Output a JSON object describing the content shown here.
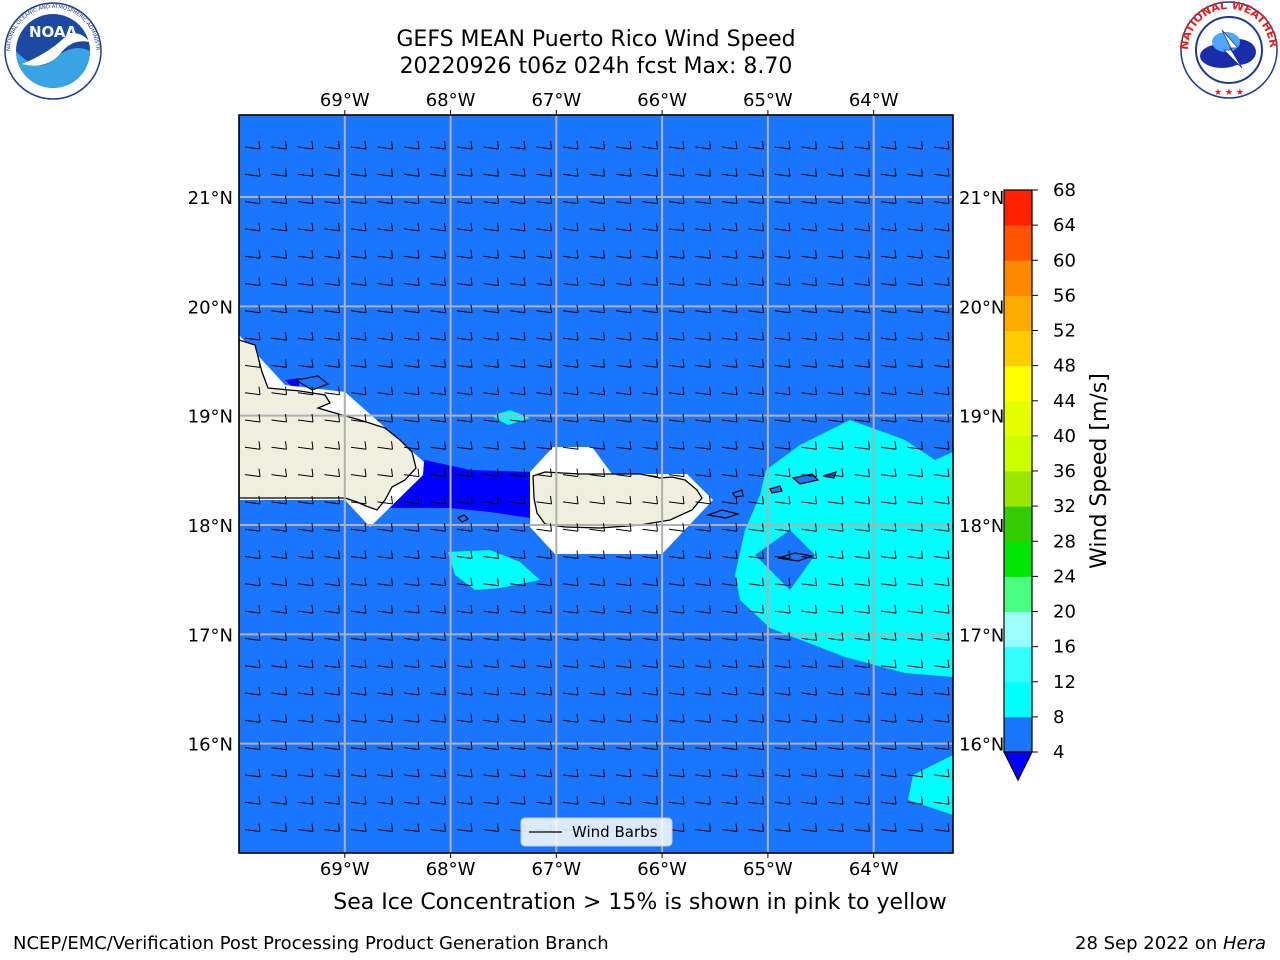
{
  "header": {
    "title_line1": "GEFS MEAN Puerto Rico Wind Speed",
    "title_line2": "20220926 t06z 024h fcst   Max: 8.70"
  },
  "logos": {
    "left": {
      "name": "noaa-logo",
      "text": "NOAA",
      "ring_text": "NATIONAL OCEANIC AND ATMOSPHERIC ADMINISTRATION · U.S. DEPARTMENT OF COMMERCE"
    },
    "right": {
      "name": "nws-logo",
      "ring_text": "NATIONAL WEATHER SERVICE"
    }
  },
  "map": {
    "lon_ticks": [
      "69°W",
      "68°W",
      "67°W",
      "66°W",
      "65°W",
      "64°W"
    ],
    "lat_ticks": [
      "21°N",
      "20°N",
      "19°N",
      "18°N",
      "17°N",
      "16°N"
    ],
    "lon_values": [
      -69,
      -68,
      -67,
      -66,
      -65,
      -64
    ],
    "lat_values": [
      21,
      20,
      19,
      18,
      17,
      16
    ],
    "extent": {
      "lon_min": -70.0,
      "lon_max": -63.25,
      "lat_min": 15.0,
      "lat_max": 21.75
    },
    "legend_label": "Wind Barbs",
    "ocean_color": "#1a75ff",
    "land_color": "#efefdf",
    "wind_direction": "easterly"
  },
  "colorbar": {
    "label": "Wind Speed [m/s]",
    "ticks": [
      "4",
      "8",
      "12",
      "16",
      "20",
      "24",
      "28",
      "32",
      "36",
      "40",
      "44",
      "48",
      "52",
      "56",
      "60",
      "64",
      "68"
    ],
    "colors": [
      "#1a75ff",
      "#00ffff",
      "#33ffff",
      "#99ffff",
      "#4dff80",
      "#00e600",
      "#33cc00",
      "#99e600",
      "#ccff00",
      "#e6ff00",
      "#ffff00",
      "#ffcc00",
      "#ffaa00",
      "#ff8800",
      "#ff5500",
      "#ff2200"
    ],
    "under_color": "#0000ff"
  },
  "chart_data": {
    "type": "heatmap",
    "title": "GEFS MEAN Puerto Rico Wind Speed",
    "subtitle": "20220926 t06z 024h fcst   Max: 8.70",
    "variable": "Wind Speed [m/s]",
    "color_levels": [
      4,
      8,
      12,
      16,
      20,
      24,
      28,
      32,
      36,
      40,
      44,
      48,
      52,
      56,
      60,
      64,
      68
    ],
    "max": 8.7,
    "xlim": [
      -70.0,
      -63.25
    ],
    "ylim": [
      15.0,
      21.75
    ],
    "xticks": [
      -69,
      -68,
      -67,
      -66,
      -65,
      -64
    ],
    "yticks": [
      16,
      17,
      18,
      19,
      20,
      21
    ]
  },
  "caption": "Sea Ice Concentration > 15% is shown in pink to yellow",
  "footer": {
    "left": "NCEP/EMC/Verification Post Processing Product Generation Branch",
    "right_date": "28 Sep 2022 on ",
    "right_machine": "Hera"
  }
}
